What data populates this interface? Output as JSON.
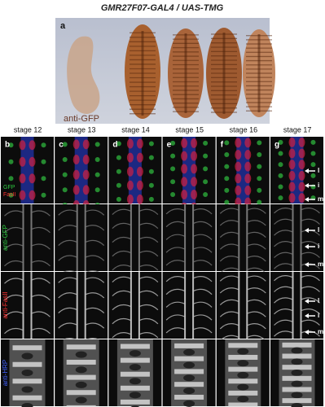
{
  "figure": {
    "title": "GMR27F07-GAL4 / UAS-TMG",
    "panel_a": {
      "letter": "a",
      "stain": "anti-GFP"
    },
    "stages": [
      "stage 12",
      "stage 13",
      "stage 14",
      "stage 15",
      "stage 16",
      "stage 17"
    ],
    "letters": [
      "b",
      "c",
      "d",
      "e",
      "f",
      "g"
    ],
    "merge_labels": [
      {
        "text": "GFP",
        "color": "#2ecc40"
      },
      {
        "text": "FasII",
        "color": "#ff3030"
      }
    ],
    "row_labels": [
      {
        "text": "anti-GFP",
        "color": "#2ecc40"
      },
      {
        "text": "anti-FasII",
        "color": "#ff3030"
      },
      {
        "text": "anti-HRP",
        "color": "#4060ff"
      }
    ],
    "arrows": [
      "l",
      "i",
      "m"
    ]
  }
}
